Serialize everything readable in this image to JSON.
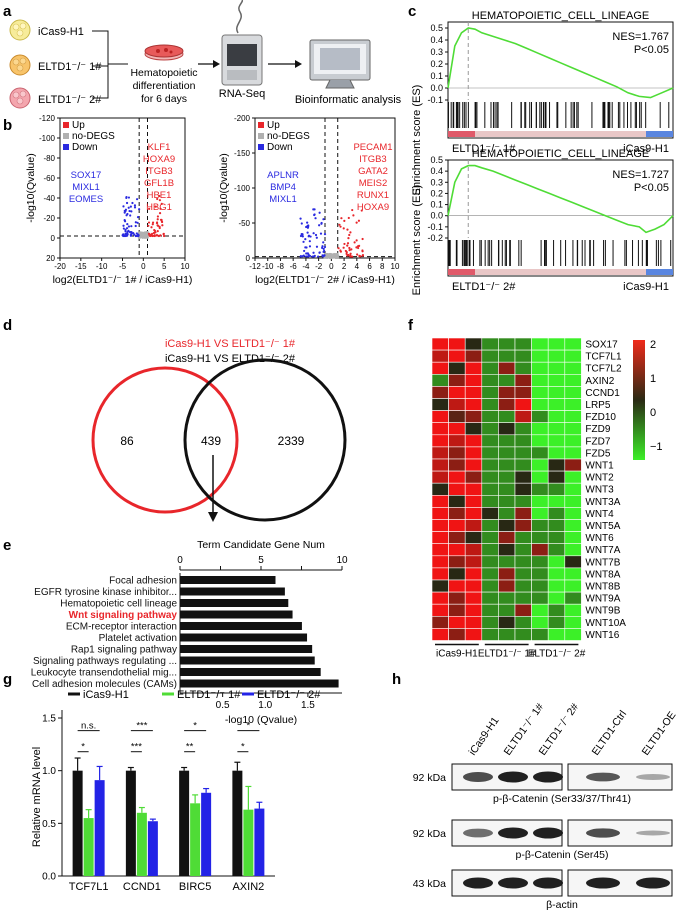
{
  "panels": {
    "a": {
      "letter": "a",
      "samples": [
        "iCas9-H1",
        "ELTD1⁻/⁻ 1#",
        "ELTD1⁻/⁻ 2#"
      ],
      "step1": [
        "Hematopoietic",
        "differentiation",
        "for 6 days"
      ],
      "step2": "RNA-Seq",
      "step3": "Bioinformatic analysis"
    },
    "b": {
      "letter": "b",
      "ylabel": "-log10(Qvalue)",
      "legend": [
        "Up",
        "no-DEGS",
        "Down"
      ],
      "colors": {
        "up": "#e8262b",
        "nodeg": "#b0b0b0",
        "down": "#2a2ae0"
      },
      "left": {
        "xlabel": "log2(ELTD1⁻/⁻ 1# / iCas9-H1)",
        "xticks": [
          -20,
          -15,
          -10,
          -5,
          0,
          5,
          10
        ],
        "xlim": [
          -20,
          10
        ],
        "yticks": [
          -120,
          -100,
          -80,
          -60,
          -40,
          -20,
          0,
          20
        ],
        "ylim": [
          -20,
          120
        ],
        "down_genes": [
          "SOX17",
          "MIXL1",
          "EOMES"
        ],
        "up_genes": [
          "KLF1",
          "HOXA9",
          "ITGB3",
          "GFL1B",
          "HBE1",
          "HBG1"
        ]
      },
      "right": {
        "xlabel": "log2(ELTD1⁻/⁻ 2# / iCas9-H1)",
        "xticks": [
          -12,
          -10,
          -8,
          -6,
          -4,
          -2,
          0,
          2,
          4,
          6,
          8,
          10
        ],
        "xlim": [
          -12,
          10
        ],
        "yticks": [
          -200,
          -150,
          -100,
          -50,
          0
        ],
        "ylim": [
          0,
          200
        ],
        "down_genes": [
          "APLNR",
          "BMP4",
          "MIXL1"
        ],
        "up_genes": [
          "PECAM1",
          "ITGB3",
          "GATA2",
          "MEIS2",
          "RUNX1",
          "HOXA9"
        ]
      }
    },
    "c": {
      "letter": "c",
      "ylabel": "Enrichment score (ES)",
      "top": {
        "title": "HEMATOPOIETIC_CELL_LINEAGE",
        "nes": "NES=1.767",
        "p": "P<0.05",
        "left_label": "ELTD1⁻/⁻ 1#",
        "right_label": "iCas9-H1",
        "yticks": [
          "0.5",
          "0.4",
          "0.3",
          "0.2",
          "0.1",
          "0.0",
          "-0.1"
        ]
      },
      "bottom": {
        "title": "HEMATOPOIETIC_CELL_LINEAGE",
        "nes": "NES=1.727",
        "p": "P<0.05",
        "left_label": "ELTD1⁻/⁻ 2#",
        "right_label": "iCas9-H1",
        "yticks": [
          "0.5",
          "0.4",
          "0.3",
          "0.2",
          "0.1",
          "0.0",
          "-0.1",
          "-0.2"
        ]
      }
    },
    "d": {
      "letter": "d",
      "label1": "iCas9-H1 VS ELTD1⁻/⁻ 1#",
      "label2": "iCas9-H1 VS ELTD1⁻/⁻ 2#",
      "only1": "86",
      "both": "439",
      "only2": "2339",
      "color1": "#e8262b",
      "color2": "#111111"
    },
    "e": {
      "letter": "e",
      "top_axis_title": "Term Candidate Gene Num",
      "bottom_axis_title": "-log10 (Qvalue)",
      "top_ticks": [
        0,
        5,
        10
      ],
      "bottom_ticks": [
        "0.5",
        "1.0",
        "1.5"
      ],
      "highlight": "Wnt signaling pathway"
    },
    "f": {
      "letter": "f",
      "genes": [
        "SOX17",
        "TCF7L1",
        "TCF7L2",
        "AXIN2",
        "CCND1",
        "LRP5",
        "FZD10",
        "FZD9",
        "FZD7",
        "FZD5",
        "WNT1",
        "WNT2",
        "WNT3",
        "WNT3A",
        "WNT4",
        "WNT5A",
        "WNT6",
        "WNT7A",
        "WNT7B",
        "WNT8A",
        "WNT8B",
        "WNT9A",
        "WNT9B",
        "WNT10A",
        "WNT16"
      ],
      "groups": [
        "iCas9-H1",
        "ELTD1⁻/⁻ 1#",
        "ELTD1⁻/⁻ 2#"
      ],
      "scale_ticks": [
        "2",
        "1",
        "0",
        "−1"
      ],
      "values": [
        [
          2,
          2,
          0,
          -1,
          -1,
          -1,
          -2,
          -2,
          -2
        ],
        [
          1.5,
          2,
          1,
          -1,
          -1,
          -1,
          -2,
          -2,
          -2
        ],
        [
          2,
          0,
          2,
          -1,
          1,
          -1,
          -2,
          -2,
          -2
        ],
        [
          -1,
          1,
          2,
          -1,
          -1,
          1,
          -2,
          -2,
          -2
        ],
        [
          1,
          2,
          2,
          -1,
          1,
          1,
          -2,
          -2,
          -2
        ],
        [
          0,
          1.5,
          2,
          -1,
          1,
          2,
          -2,
          -2,
          -2
        ],
        [
          2,
          0.5,
          1,
          -1,
          -1,
          1.5,
          -1,
          -2,
          -2
        ],
        [
          2,
          2,
          0,
          -1,
          0,
          -1,
          -2,
          -2,
          -2
        ],
        [
          2,
          1.5,
          2,
          -1,
          -1,
          -1,
          -2,
          -2,
          -2
        ],
        [
          1.5,
          1,
          2,
          -1,
          -1,
          -1,
          -1,
          -2,
          -2
        ],
        [
          1.5,
          1,
          2,
          -1,
          -1,
          -1,
          -2,
          0,
          1
        ],
        [
          1.5,
          2,
          1,
          -1,
          -1,
          0,
          -2,
          0,
          -2
        ],
        [
          0,
          2,
          2,
          -1,
          -1,
          0,
          -1,
          -1,
          -2
        ],
        [
          2,
          0,
          2,
          -1,
          -1,
          -1,
          -2,
          -2,
          -2
        ],
        [
          2,
          1,
          2,
          0,
          -1,
          1,
          -2,
          -1,
          -2
        ],
        [
          2,
          2,
          1.5,
          -1,
          0,
          1,
          -1,
          -1,
          -2
        ],
        [
          2,
          1,
          0,
          -1,
          1,
          -1,
          -1,
          -1,
          -2
        ],
        [
          2,
          2,
          1.5,
          -1,
          0,
          -1,
          1,
          -1,
          -2
        ],
        [
          2,
          1,
          1.5,
          -1,
          -1,
          -1,
          -1,
          -2,
          0
        ],
        [
          2,
          0,
          2,
          -1,
          1,
          -1,
          -1,
          -2,
          -2
        ],
        [
          0,
          2,
          2,
          -1,
          1,
          -1,
          -1,
          -2,
          -2
        ],
        [
          2,
          1,
          2,
          -1,
          -1,
          -1,
          -1,
          -2,
          -1
        ],
        [
          2,
          1,
          2,
          -1,
          -1,
          1,
          -2,
          -1,
          -2
        ],
        [
          1,
          2,
          2,
          -1,
          0,
          -1,
          -2,
          -1,
          -2
        ],
        [
          2,
          1,
          2,
          -1,
          -1,
          -1,
          -1,
          -2,
          -2
        ]
      ]
    },
    "g": {
      "letter": "g",
      "ylabel": "Relative mRNA level",
      "yticks": [
        "0.0",
        "0.5",
        "1.0",
        "1.5"
      ],
      "significance": [
        "n.s.",
        "*",
        "***",
        "***",
        "*",
        "**",
        "*",
        "*"
      ]
    },
    "h": {
      "letter": "h",
      "lanes_left": [
        "iCas9-H1",
        "ELTD1⁻/⁻ 1#",
        "ELTD1⁻/⁻ 2#"
      ],
      "lanes_right": [
        "ELTD1-Ctrl",
        "ELTD1-OE"
      ],
      "mw": [
        "92 kDa",
        "92 kDa",
        "43 kDa"
      ],
      "blot_labels": [
        "p-β-Catenin (Ser33/37/Thr41)",
        "p-β-Catenin (Ser45)",
        "β-actin"
      ]
    }
  },
  "chart_data": [
    {
      "type": "bar",
      "panel": "e",
      "title": "Term Candidate Gene Num",
      "xlabel": "-log10 (Qvalue)",
      "categories": [
        "Focal adhesion",
        "EGFR tyrosine kinase inhibitor...",
        "Hematopoietic cell lineage",
        "Wnt signaling pathway",
        "ECM-receptor interaction",
        "Platelet activation",
        "Rap1 signaling pathway",
        "Signaling pathways regulating ...",
        "Leukocyte transendothelial mig...",
        "Cell adhesion molecules (CAMs)"
      ],
      "values": [
        1.12,
        1.23,
        1.27,
        1.32,
        1.43,
        1.49,
        1.55,
        1.58,
        1.65,
        1.86
      ],
      "xlim": [
        0,
        1.9
      ]
    },
    {
      "type": "bar",
      "panel": "g",
      "categories": [
        "TCF7L1",
        "CCND1",
        "BIRC5",
        "AXIN2"
      ],
      "series": [
        {
          "name": "iCas9-H1",
          "color": "#111111",
          "values": [
            1.0,
            1.0,
            1.0,
            1.0
          ],
          "err": [
            0.12,
            0.03,
            0.03,
            0.08
          ]
        },
        {
          "name": "ELTD1⁻/⁻ 1#",
          "color": "#4fdc36",
          "values": [
            0.55,
            0.6,
            0.69,
            0.63
          ],
          "err": [
            0.08,
            0.05,
            0.08,
            0.22
          ]
        },
        {
          "name": "ELTD1⁻/⁻ 2#",
          "color": "#2323e6",
          "values": [
            0.91,
            0.52,
            0.79,
            0.64
          ],
          "err": [
            0.13,
            0.02,
            0.04,
            0.06
          ]
        }
      ],
      "ylabel": "Relative mRNA level",
      "ylim": [
        0,
        1.5
      ],
      "legend": "top"
    },
    {
      "type": "line",
      "panel": "c-top",
      "title": "HEMATOPOIETIC_CELL_LINEAGE",
      "ylabel": "Enrichment score (ES)",
      "x": [
        0,
        0.03,
        0.06,
        0.09,
        0.12,
        0.15,
        0.2,
        0.25,
        0.3,
        0.35,
        0.4,
        0.45,
        0.5,
        0.55,
        0.6,
        0.65,
        0.7,
        0.75,
        0.8,
        0.85,
        0.9,
        0.95,
        1.0
      ],
      "values": [
        0,
        0.35,
        0.46,
        0.5,
        0.49,
        0.46,
        0.43,
        0.4,
        0.37,
        0.33,
        0.29,
        0.25,
        0.21,
        0.17,
        0.13,
        0.09,
        0.05,
        0.01,
        -0.04,
        -0.07,
        -0.08,
        -0.04,
        0.0
      ],
      "ylim": [
        -0.1,
        0.55
      ]
    },
    {
      "type": "line",
      "panel": "c-bottom",
      "title": "HEMATOPOIETIC_CELL_LINEAGE",
      "ylabel": "Enrichment score (ES)",
      "x": [
        0,
        0.03,
        0.06,
        0.09,
        0.12,
        0.15,
        0.2,
        0.25,
        0.3,
        0.35,
        0.4,
        0.45,
        0.5,
        0.55,
        0.6,
        0.65,
        0.7,
        0.75,
        0.8,
        0.85,
        0.88,
        0.92,
        0.96,
        1.0
      ],
      "values": [
        0,
        0.3,
        0.42,
        0.45,
        0.45,
        0.43,
        0.4,
        0.36,
        0.32,
        0.28,
        0.24,
        0.2,
        0.16,
        0.12,
        0.08,
        0.04,
        0.0,
        -0.04,
        -0.08,
        -0.1,
        -0.15,
        -0.12,
        -0.08,
        0.0
      ],
      "ylim": [
        -0.2,
        0.5
      ]
    }
  ]
}
